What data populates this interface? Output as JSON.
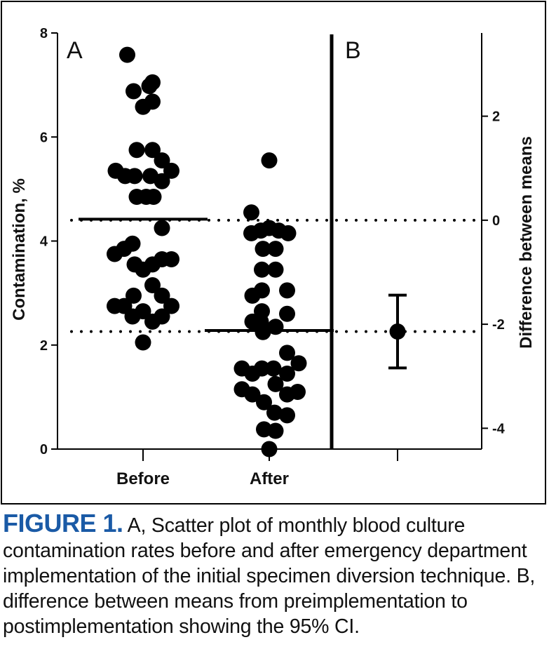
{
  "chart_data": {
    "type": "scatter",
    "panels": [
      {
        "label": "A",
        "role": "scatter"
      },
      {
        "label": "B",
        "role": "difference-with-ci"
      }
    ],
    "categories": [
      "Before",
      "After",
      ""
    ],
    "ylabel_left": "Contamination, %",
    "ylim_left": [
      0,
      8
    ],
    "yticks_left": [
      "0",
      "2",
      "4",
      "6",
      "8"
    ],
    "ylabel_right": "Difference between means",
    "ylim_right": [
      -4.4,
      3.6
    ],
    "yticks_right": [
      "2",
      "0",
      "-2",
      "-4"
    ],
    "series": [
      {
        "category": "Before",
        "mean": 4.42,
        "points": [
          {
            "offset": -0.15,
            "y": 7.58
          },
          {
            "offset": -0.09,
            "y": 6.88
          },
          {
            "offset": 0.06,
            "y": 6.98
          },
          {
            "offset": 0.09,
            "y": 7.05
          },
          {
            "offset": 0.0,
            "y": 6.58
          },
          {
            "offset": 0.09,
            "y": 6.68
          },
          {
            "offset": -0.06,
            "y": 5.75
          },
          {
            "offset": 0.09,
            "y": 5.75
          },
          {
            "offset": 0.18,
            "y": 5.55
          },
          {
            "offset": -0.26,
            "y": 5.35
          },
          {
            "offset": -0.17,
            "y": 5.25
          },
          {
            "offset": -0.08,
            "y": 5.25
          },
          {
            "offset": 0.07,
            "y": 5.25
          },
          {
            "offset": 0.18,
            "y": 5.15
          },
          {
            "offset": 0.27,
            "y": 5.35
          },
          {
            "offset": -0.06,
            "y": 4.85
          },
          {
            "offset": 0.03,
            "y": 4.85
          },
          {
            "offset": 0.1,
            "y": 4.85
          },
          {
            "offset": 0.18,
            "y": 4.25
          },
          {
            "offset": -0.27,
            "y": 3.75
          },
          {
            "offset": -0.18,
            "y": 3.85
          },
          {
            "offset": -0.1,
            "y": 3.95
          },
          {
            "offset": -0.08,
            "y": 3.55
          },
          {
            "offset": 0.0,
            "y": 3.45
          },
          {
            "offset": 0.09,
            "y": 3.55
          },
          {
            "offset": 0.18,
            "y": 3.65
          },
          {
            "offset": 0.27,
            "y": 3.65
          },
          {
            "offset": 0.09,
            "y": 3.15
          },
          {
            "offset": -0.09,
            "y": 2.95
          },
          {
            "offset": 0.18,
            "y": 2.95
          },
          {
            "offset": -0.27,
            "y": 2.75
          },
          {
            "offset": -0.18,
            "y": 2.75
          },
          {
            "offset": 0.27,
            "y": 2.75
          },
          {
            "offset": -0.1,
            "y": 2.55
          },
          {
            "offset": 0.0,
            "y": 2.65
          },
          {
            "offset": 0.09,
            "y": 2.45
          },
          {
            "offset": 0.18,
            "y": 2.55
          },
          {
            "offset": 0.0,
            "y": 2.05
          }
        ]
      },
      {
        "category": "After",
        "mean": 2.28,
        "points": [
          {
            "offset": 0.0,
            "y": 5.55
          },
          {
            "offset": -0.17,
            "y": 4.55
          },
          {
            "offset": -0.17,
            "y": 4.15
          },
          {
            "offset": -0.08,
            "y": 4.2
          },
          {
            "offset": 0.0,
            "y": 4.25
          },
          {
            "offset": 0.09,
            "y": 4.2
          },
          {
            "offset": 0.18,
            "y": 4.15
          },
          {
            "offset": -0.06,
            "y": 3.85
          },
          {
            "offset": 0.06,
            "y": 3.85
          },
          {
            "offset": -0.07,
            "y": 3.45
          },
          {
            "offset": 0.06,
            "y": 3.45
          },
          {
            "offset": -0.16,
            "y": 2.95
          },
          {
            "offset": -0.07,
            "y": 3.05
          },
          {
            "offset": 0.17,
            "y": 3.05
          },
          {
            "offset": -0.07,
            "y": 2.65
          },
          {
            "offset": 0.17,
            "y": 2.6
          },
          {
            "offset": -0.16,
            "y": 2.45
          },
          {
            "offset": -0.08,
            "y": 2.45
          },
          {
            "offset": 0.06,
            "y": 2.35
          },
          {
            "offset": -0.06,
            "y": 2.25
          },
          {
            "offset": 0.17,
            "y": 1.85
          },
          {
            "offset": -0.26,
            "y": 1.55
          },
          {
            "offset": -0.16,
            "y": 1.45
          },
          {
            "offset": -0.07,
            "y": 1.55
          },
          {
            "offset": 0.04,
            "y": 1.55
          },
          {
            "offset": 0.17,
            "y": 1.45
          },
          {
            "offset": 0.28,
            "y": 1.65
          },
          {
            "offset": 0.06,
            "y": 1.25
          },
          {
            "offset": -0.26,
            "y": 1.15
          },
          {
            "offset": -0.16,
            "y": 1.05
          },
          {
            "offset": -0.05,
            "y": 0.9
          },
          {
            "offset": 0.17,
            "y": 1.05
          },
          {
            "offset": 0.27,
            "y": 1.1
          },
          {
            "offset": 0.05,
            "y": 0.7
          },
          {
            "offset": 0.17,
            "y": 0.65
          },
          {
            "offset": -0.05,
            "y": 0.38
          },
          {
            "offset": 0.06,
            "y": 0.35
          },
          {
            "offset": 0.0,
            "y": 0.0
          }
        ]
      }
    ],
    "difference": {
      "category_index": 2,
      "mean": -2.14,
      "ci_low": -2.84,
      "ci_high": -1.44
    },
    "reference_lines_right": [
      0,
      -2.14
    ]
  },
  "caption": {
    "label": "FIGURE 1.",
    "text": " A, Scatter plot of monthly blood culture contamination rates before and after emergency department implementation of the initial specimen diversion technique. B, difference between means from preimplementation to postimplementation showing the 95% CI."
  }
}
